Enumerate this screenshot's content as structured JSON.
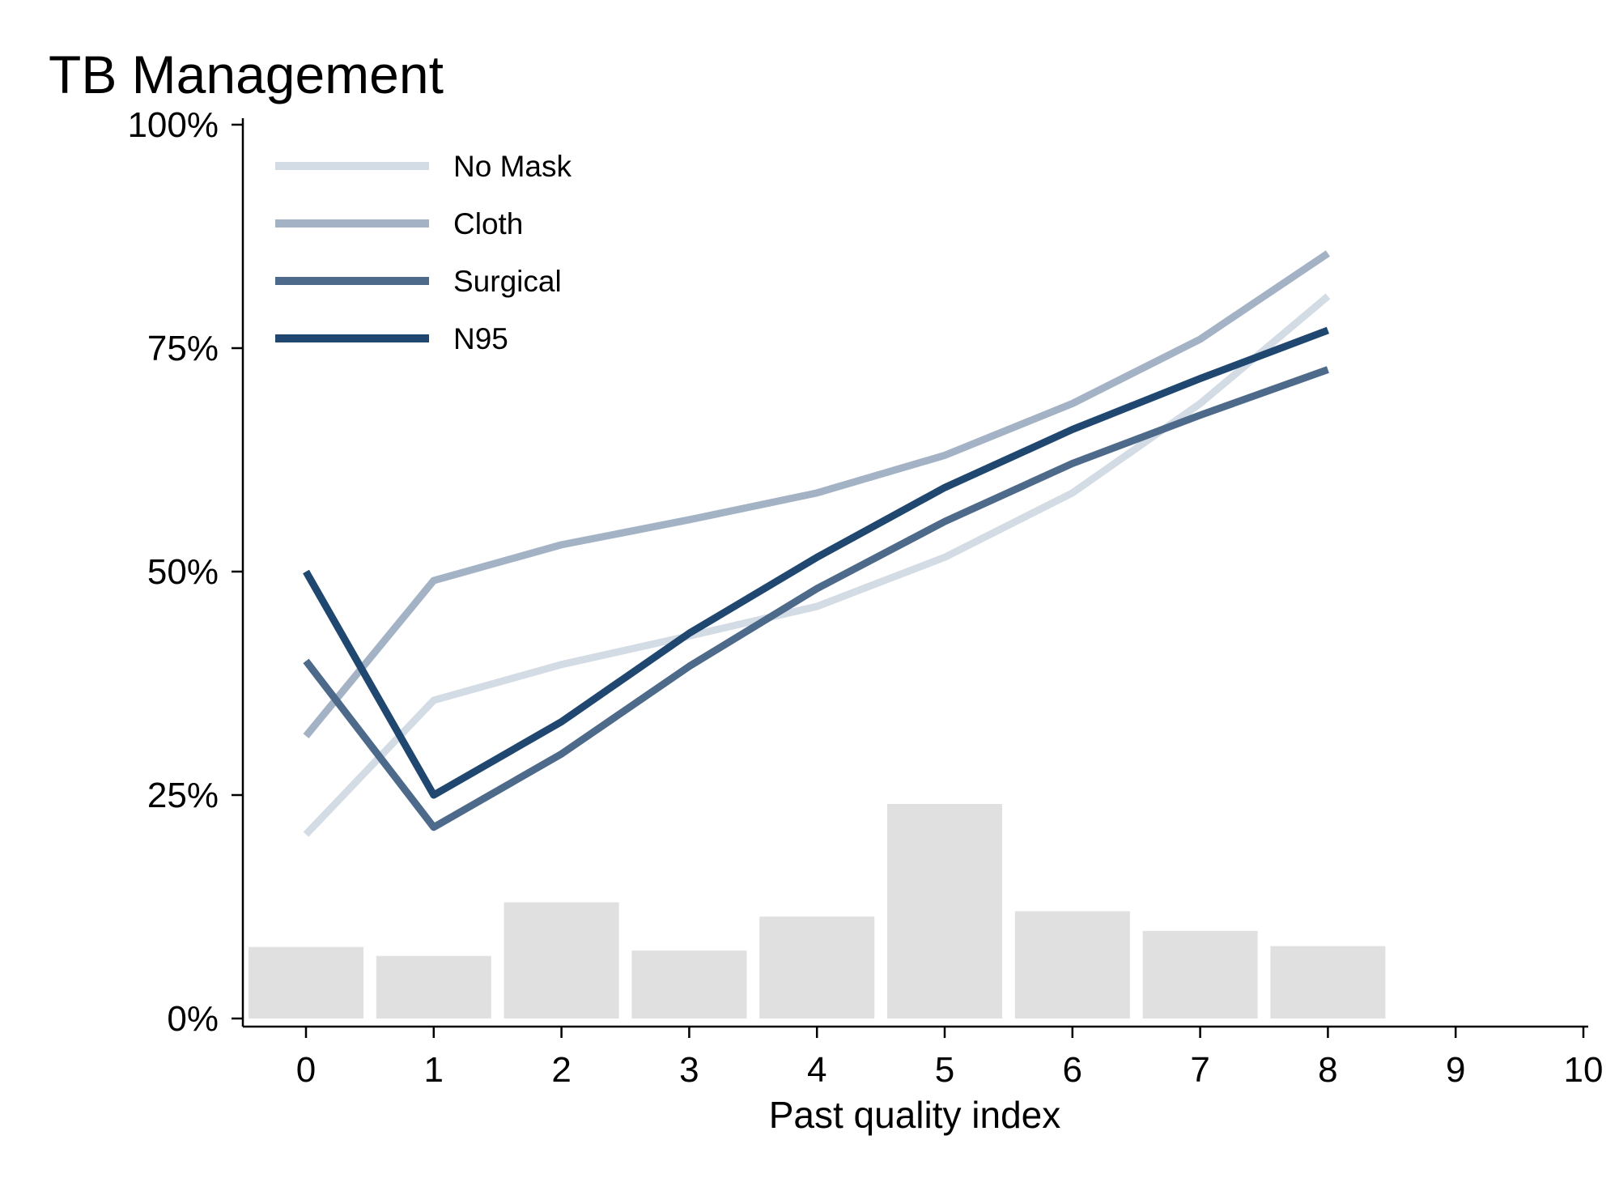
{
  "chart_data": {
    "type": "line",
    "title": "TB Management",
    "xlabel": "Past quality index",
    "ylabel": "",
    "xlim": [
      -0.5,
      10
    ],
    "ylim": [
      0,
      100
    ],
    "x_ticks": [
      0,
      1,
      2,
      3,
      4,
      5,
      6,
      7,
      8,
      9,
      10
    ],
    "y_ticks": [
      0,
      25,
      50,
      75,
      100
    ],
    "y_tick_labels": [
      "0%",
      "25%",
      "50%",
      "75%",
      "100%"
    ],
    "grid": false,
    "legend_position": "top-left",
    "histogram": {
      "x": [
        0,
        1,
        2,
        3,
        4,
        5,
        6,
        7,
        8
      ],
      "values": [
        8,
        7,
        13,
        7.6,
        11.4,
        24,
        12,
        9.8,
        8.1
      ],
      "color": "#e0e0e0"
    },
    "x": [
      0,
      1,
      2,
      3,
      4,
      5,
      6,
      7,
      8
    ],
    "series": [
      {
        "name": "No Mask",
        "color": "#d3dbe4",
        "values": [
          20.6,
          35.6,
          39.6,
          42.8,
          46.1,
          51.6,
          58.8,
          68.8,
          80.8
        ]
      },
      {
        "name": "Cloth",
        "color": "#a3b3c5",
        "values": [
          31.6,
          49,
          53,
          55.8,
          58.8,
          63,
          68.8,
          76,
          85.6
        ]
      },
      {
        "name": "Surgical",
        "color": "#4e6a8a",
        "values": [
          40,
          21.4,
          29.6,
          39.4,
          48.1,
          55.6,
          62.1,
          67.5,
          72.6
        ]
      },
      {
        "name": "N95",
        "color": "#1f4770",
        "values": [
          50,
          25,
          33.2,
          43.1,
          51.6,
          59.4,
          65.9,
          71.6,
          77
        ]
      }
    ]
  }
}
